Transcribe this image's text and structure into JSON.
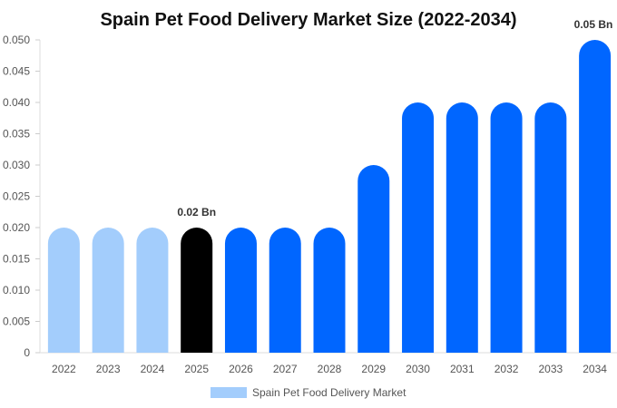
{
  "chart_data": {
    "type": "bar",
    "title": "Spain Pet Food Delivery Market Size (2022-2034)",
    "categories": [
      "2022",
      "2023",
      "2024",
      "2025",
      "2026",
      "2027",
      "2028",
      "2029",
      "2030",
      "2031",
      "2032",
      "2033",
      "2034"
    ],
    "series": [
      {
        "name": "Spain Pet Food Delivery Market",
        "values": [
          0.02,
          0.02,
          0.02,
          0.02,
          0.02,
          0.02,
          0.02,
          0.03,
          0.04,
          0.04,
          0.04,
          0.04,
          0.05
        ]
      }
    ],
    "bar_colors": [
      "#a3cdfc",
      "#a3cdfc",
      "#a3cdfc",
      "#000000",
      "#0066ff",
      "#0066ff",
      "#0066ff",
      "#0066ff",
      "#0066ff",
      "#0066ff",
      "#0066ff",
      "#0066ff",
      "#0066ff"
    ],
    "data_labels": [
      {
        "category": "2025",
        "text": "0.02 Bn"
      },
      {
        "category": "2034",
        "text": "0.05 Bn"
      }
    ],
    "ylim": [
      0,
      0.05
    ],
    "yticks": [
      "0",
      "0.005",
      "0.010",
      "0.015",
      "0.020",
      "0.025",
      "0.030",
      "0.035",
      "0.040",
      "0.045",
      "0.050"
    ],
    "ytick_values": [
      0,
      0.005,
      0.01,
      0.015,
      0.02,
      0.025,
      0.03,
      0.035,
      0.04,
      0.045,
      0.05
    ],
    "xlabel": "",
    "ylabel": "",
    "grid": false,
    "legend": {
      "position": "bottom",
      "swatch_color": "#a3cdfc"
    }
  }
}
